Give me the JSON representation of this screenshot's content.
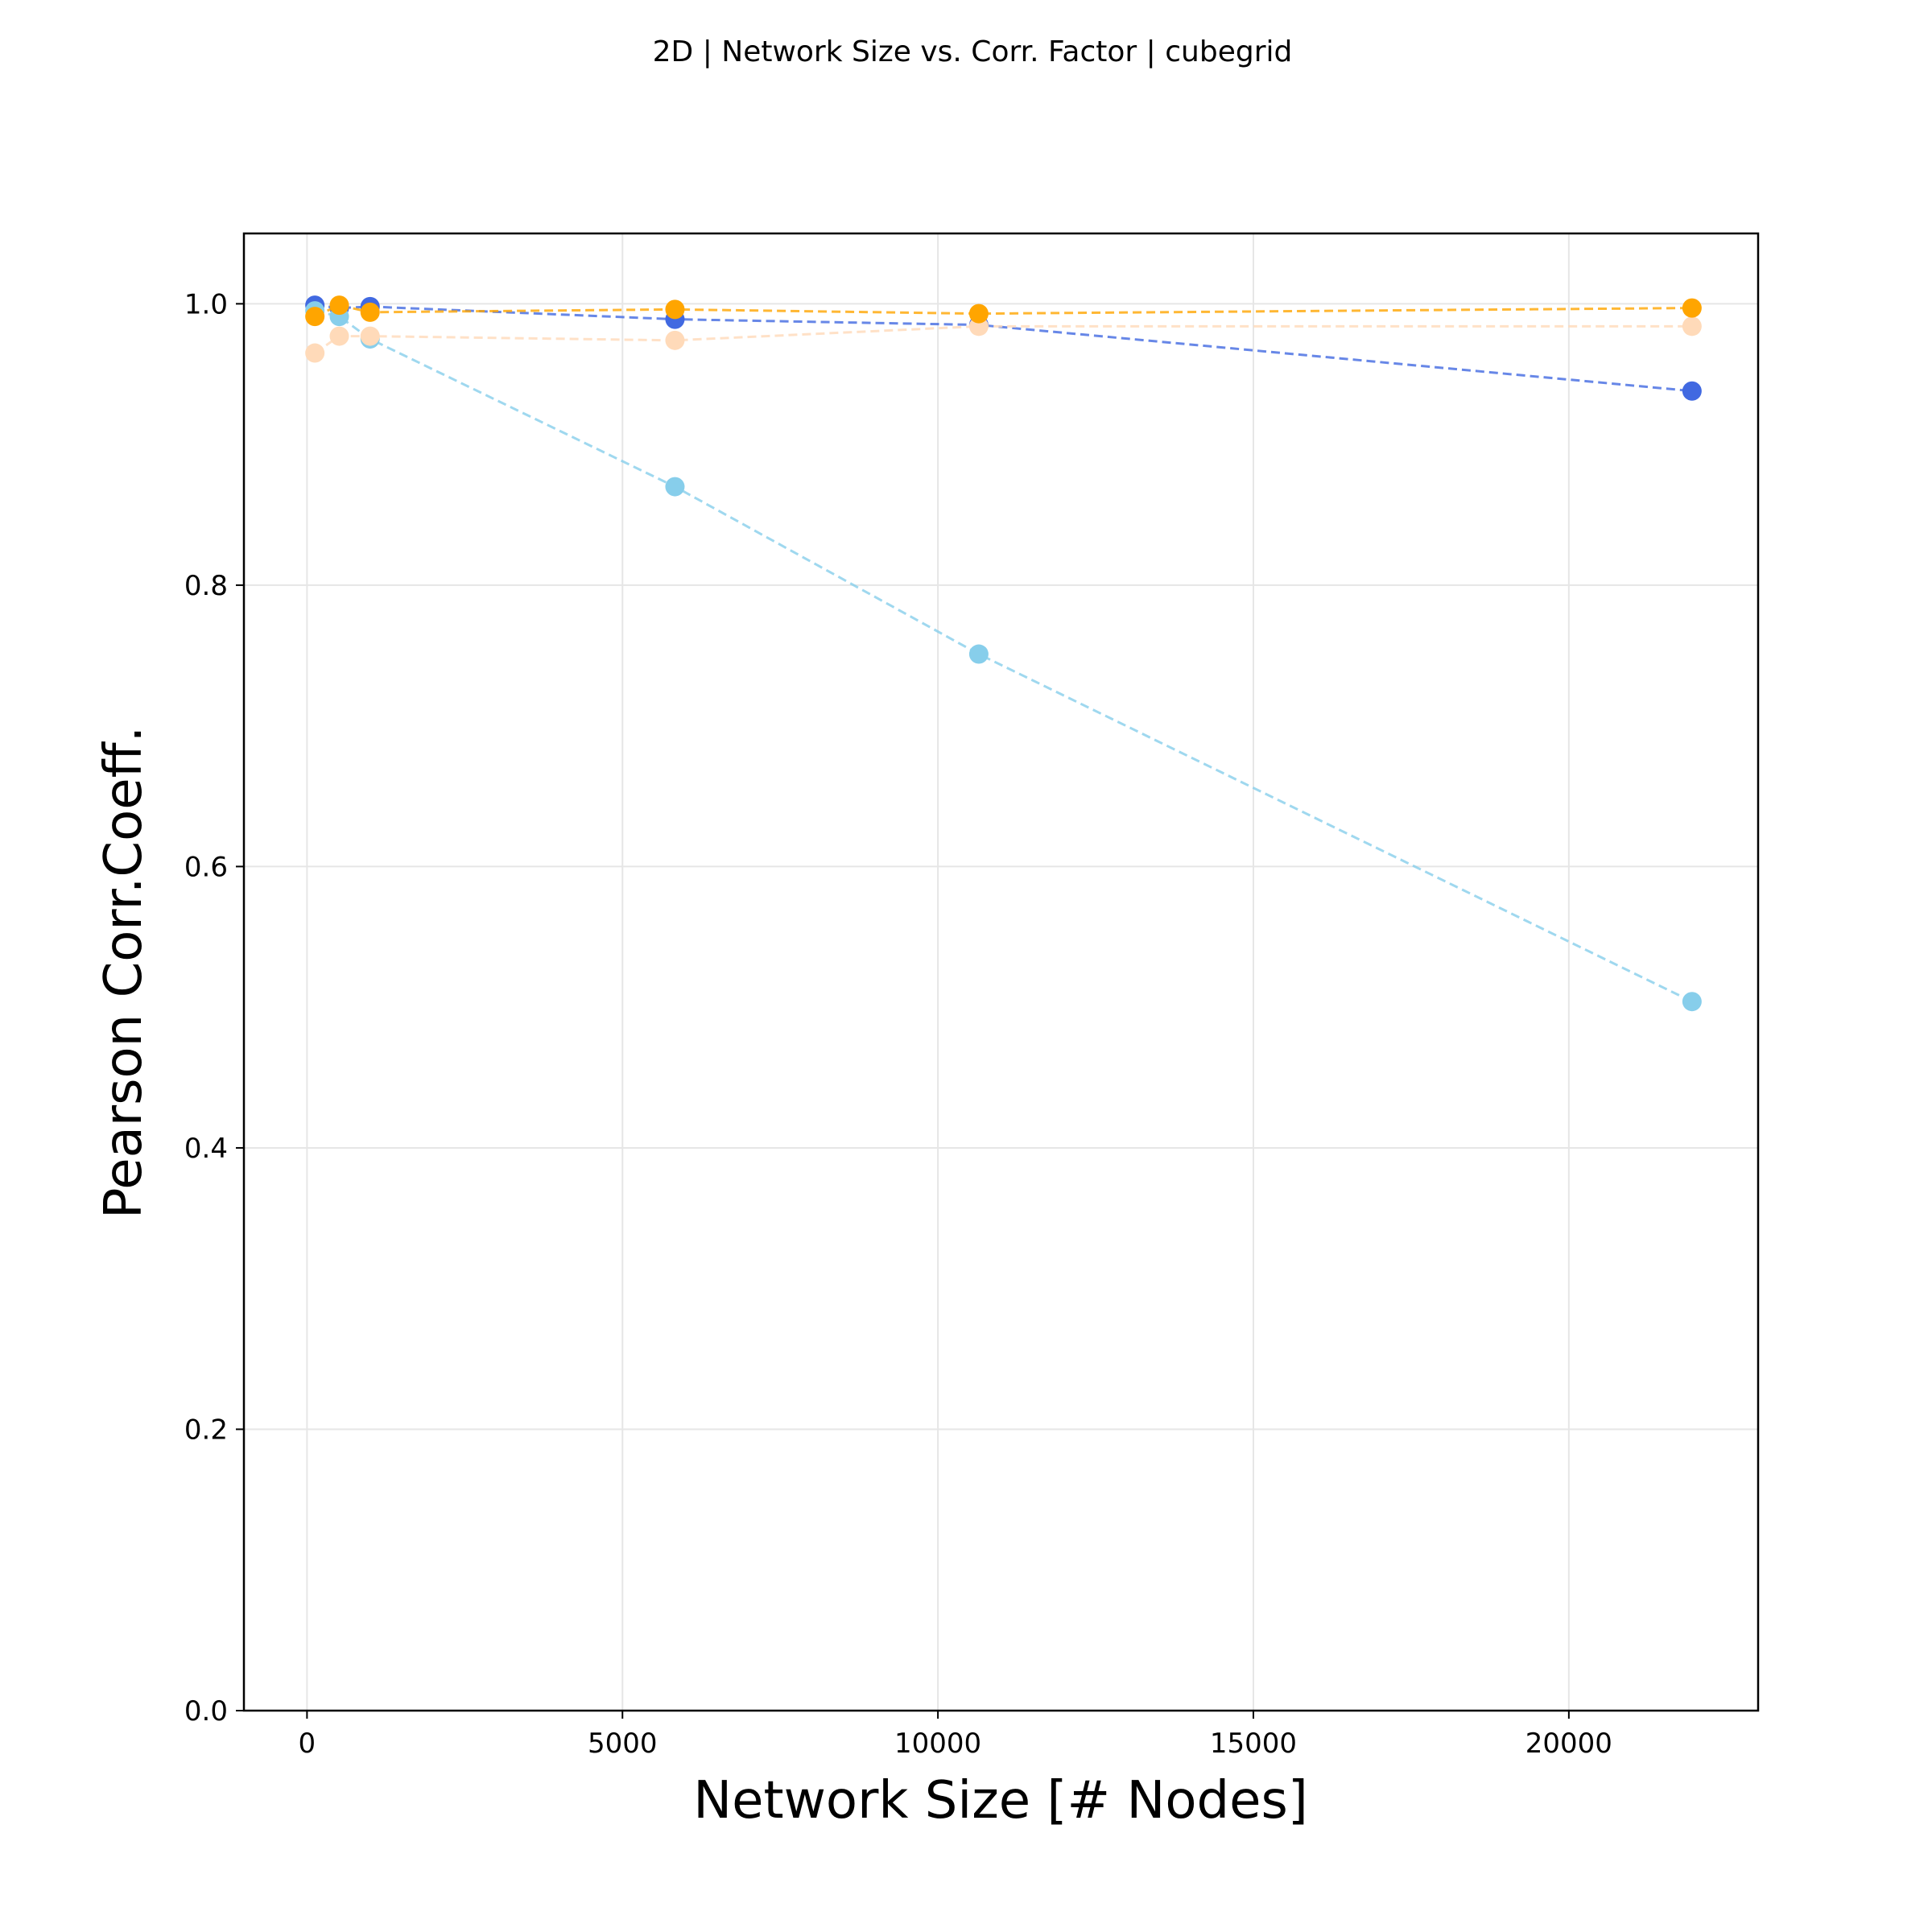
{
  "chart_data": {
    "type": "scatter",
    "title": "2D | Network Size vs. Corr. Factor | cubegrid",
    "xlabel": "Network Size [# Nodes]",
    "ylabel": "Pearson Corr.Coeff.",
    "xlim": [
      -1000,
      23000
    ],
    "ylim": [
      0.0,
      1.05
    ],
    "xticks": [
      0,
      5000,
      10000,
      15000,
      20000
    ],
    "xtick_labels": [
      "0",
      "5000",
      "10000",
      "15000",
      "20000"
    ],
    "yticks": [
      0.0,
      0.2,
      0.4,
      0.6,
      0.8,
      1.0
    ],
    "ytick_labels": [
      "0.0",
      "0.2",
      "0.4",
      "0.6",
      "0.8",
      "1.0"
    ],
    "grid": true,
    "x": [
      125,
      512,
      1000,
      5832,
      10648,
      21952
    ],
    "series": [
      {
        "color": "#4169e1",
        "values": [
          0.999,
          0.997,
          0.998,
          0.989,
          0.985,
          0.938
        ]
      },
      {
        "color": "#87ceeb",
        "values": [
          0.995,
          0.991,
          0.975,
          0.87,
          0.751,
          0.504
        ]
      },
      {
        "color": "#ffdab9",
        "values": [
          0.965,
          0.977,
          0.977,
          0.974,
          0.984,
          0.984
        ]
      },
      {
        "color": "#ffa500",
        "values": [
          0.991,
          0.999,
          0.994,
          0.996,
          0.993,
          0.997
        ]
      }
    ]
  }
}
